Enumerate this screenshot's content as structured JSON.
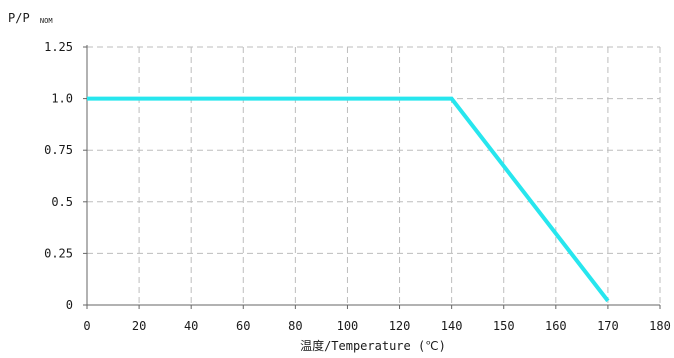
{
  "chart_data": {
    "type": "line",
    "ylabel_main": "P/P",
    "ylabel_sub": "NOM",
    "xlabel": "温度/Temperature (℃)",
    "x_ticks": [
      "0",
      "20",
      "40",
      "60",
      "80",
      "100",
      "120",
      "140",
      "150",
      "160",
      "170",
      "180"
    ],
    "y_ticks": [
      {
        "label": "0",
        "value": 0
      },
      {
        "label": "0.25",
        "value": 0.25
      },
      {
        "label": "0.5",
        "value": 0.5
      },
      {
        "label": "0.75",
        "value": 0.75
      },
      {
        "label": "1.0",
        "value": 1.0
      },
      {
        "label": "1.25",
        "value": 1.25
      }
    ],
    "ylim": [
      0,
      1.25
    ],
    "grid": true,
    "series": [
      {
        "color": "#27e6ee",
        "points": [
          {
            "x": 0,
            "y": 1.0
          },
          {
            "x": 140,
            "y": 1.0
          },
          {
            "x": 170,
            "y": 0.02
          }
        ]
      }
    ]
  }
}
